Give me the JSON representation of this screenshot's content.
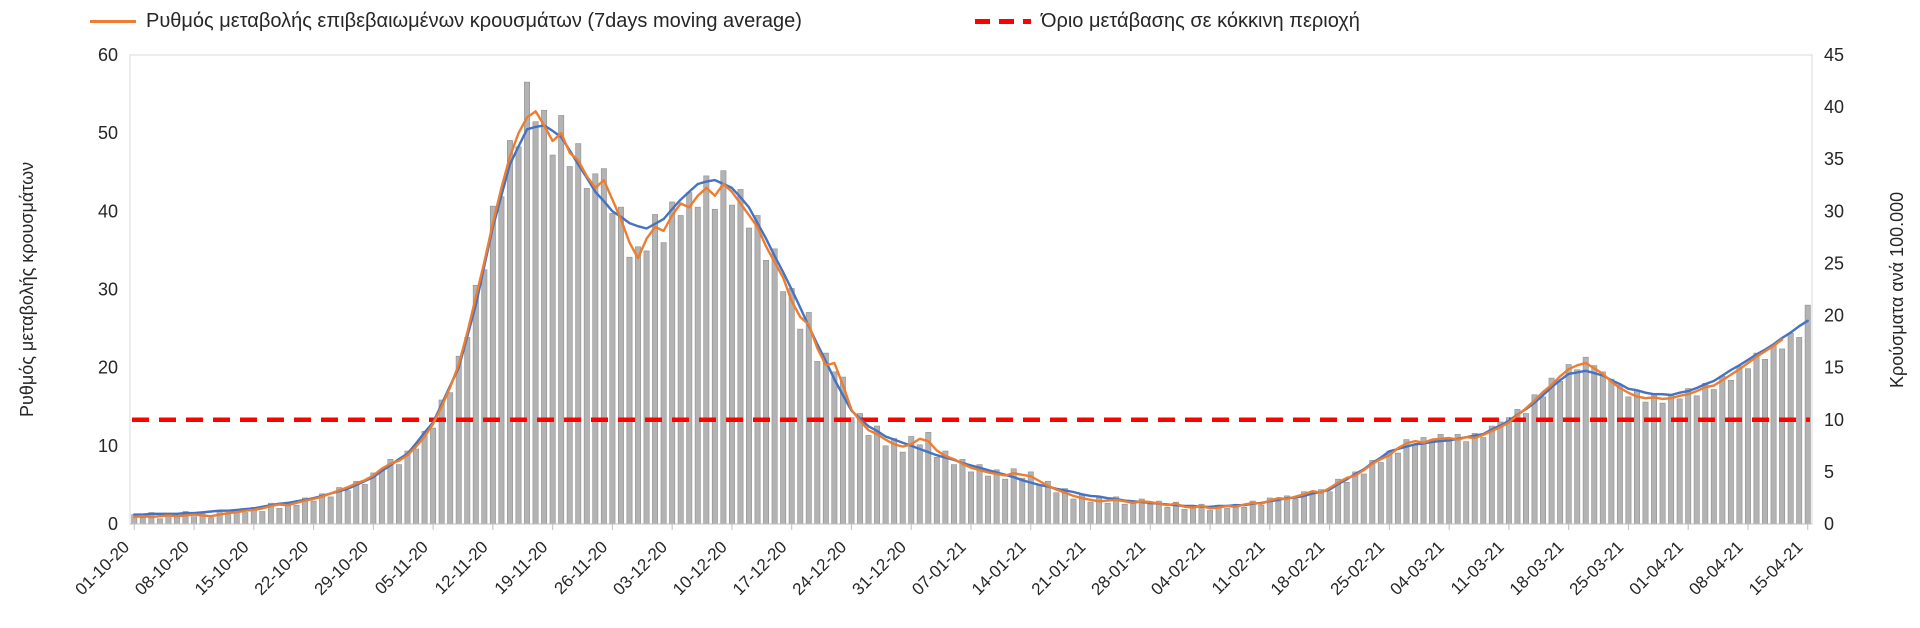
{
  "legend": {
    "items": [
      {
        "label": "Ρυθμός μεταβολής επιβεβαιωμένων κρουσμάτων (7days moving average)",
        "color": "#ED7D31",
        "style": "solid"
      },
      {
        "label": "Όριο μετάβασης σε κόκκινη περιοχή",
        "color": "#FF0000",
        "style": "dashed"
      }
    ]
  },
  "chart_data": {
    "type": "bar+line combo, dual y-axis, daily data 01-10-20 to 15-04-21",
    "grid": false,
    "legend_position": "top",
    "x": {
      "start_date": "01-10-20",
      "end_date": "15-04-21",
      "n_days": 197,
      "tick_every_days": 7,
      "tick_labels": [
        "01-10-20",
        "08-10-20",
        "15-10-20",
        "22-10-20",
        "29-10-20",
        "05-11-20",
        "12-11-20",
        "19-11-20",
        "26-11-20",
        "03-12-20",
        "10-12-20",
        "17-12-20",
        "24-12-20",
        "31-12-20",
        "07-01-21",
        "14-01-21",
        "21-01-21",
        "28-01-21",
        "04-02-21",
        "11-02-21",
        "18-02-21",
        "25-02-21",
        "04-03-21",
        "11-03-21",
        "18-03-21",
        "25-03-21",
        "01-04-21",
        "08-04-21",
        "15-04-21"
      ]
    },
    "axes": {
      "left": {
        "title": "Ρυθμός μεταβολής κρουσμάτων",
        "min": 0,
        "max": 60,
        "ticks": [
          0,
          10,
          20,
          30,
          40,
          50,
          60
        ]
      },
      "right": {
        "title": "Κρούσματα ανά 100.000",
        "min": 0,
        "max": 45,
        "ticks": [
          0,
          5,
          10,
          15,
          20,
          25,
          30,
          35,
          40,
          45
        ]
      }
    },
    "series": [
      {
        "name": "daily-cases-per-100k-bars",
        "type": "bar",
        "axis": "right",
        "color": "#b3b3b3",
        "values": [
          0.9,
          0.6,
          1.1,
          0.5,
          1.0,
          0.8,
          1.2,
          0.7,
          1.0,
          0.6,
          1.2,
          0.9,
          1.4,
          1.1,
          1.6,
          1.2,
          2.0,
          1.5,
          2.1,
          1.8,
          2.5,
          2.2,
          2.9,
          2.6,
          3.5,
          3.2,
          4.1,
          3.8,
          4.9,
          5.1,
          6.2,
          5.7,
          7.0,
          7.2,
          8.9,
          9.2,
          11.9,
          12.6,
          16.1,
          17.9,
          22.9,
          24.4,
          30.5,
          31.4,
          36.8,
          36.2,
          42.4,
          38.6,
          39.7,
          35.4,
          39.2,
          34.3,
          36.5,
          32.2,
          33.6,
          34.1,
          29.8,
          30.4,
          25.6,
          26.6,
          26.2,
          29.7,
          27.0,
          30.9,
          29.6,
          31.8,
          30.4,
          33.4,
          30.2,
          33.9,
          30.6,
          32.1,
          28.4,
          29.6,
          25.3,
          26.4,
          22.3,
          22.6,
          18.7,
          20.3,
          15.6,
          16.4,
          14.6,
          14.1,
          10.2,
          10.6,
          8.5,
          9.4,
          7.5,
          8.2,
          6.9,
          8.4,
          7.6,
          8.8,
          6.4,
          7.0,
          5.7,
          6.2,
          5.0,
          5.7,
          4.6,
          5.2,
          4.3,
          5.3,
          4.4,
          5.0,
          3.7,
          4.1,
          3.0,
          3.4,
          2.4,
          2.8,
          2.1,
          2.5,
          2.0,
          2.6,
          1.9,
          2.2,
          2.4,
          1.9,
          2.2,
          1.6,
          2.1,
          1.4,
          1.8,
          1.9,
          1.3,
          1.8,
          1.5,
          1.9,
          1.6,
          2.2,
          1.8,
          2.5,
          2.2,
          2.7,
          2.4,
          3.1,
          2.9,
          3.3,
          3.1,
          4.3,
          4.0,
          5.0,
          4.8,
          6.1,
          5.9,
          7.0,
          6.8,
          8.1,
          7.6,
          8.3,
          7.8,
          8.6,
          8.0,
          8.6,
          7.9,
          8.7,
          8.3,
          9.4,
          9.8,
          10.2,
          11.0,
          10.6,
          12.4,
          12.2,
          14.0,
          13.7,
          15.3,
          14.8,
          16.0,
          15.2,
          14.6,
          13.9,
          13.3,
          12.2,
          12.8,
          11.7,
          12.5,
          11.6,
          12.4,
          12.0,
          13.0,
          12.3,
          13.5,
          12.9,
          14.2,
          13.8,
          15.1,
          14.9,
          16.4,
          15.8,
          17.2,
          16.8,
          18.3,
          17.9,
          21.0
        ]
      },
      {
        "name": "rate-of-change-7day-moving-average",
        "type": "line",
        "axis": "left",
        "color": "#ED7D31",
        "values": [
          0.9,
          1.0,
          0.9,
          1.0,
          1.1,
          1.0,
          1.1,
          1.2,
          1.1,
          1.0,
          1.2,
          1.4,
          1.5,
          1.7,
          1.8,
          2.0,
          2.3,
          2.5,
          2.4,
          2.7,
          3.0,
          3.2,
          3.5,
          3.9,
          4.3,
          4.7,
          5.2,
          5.6,
          6.2,
          7.1,
          7.7,
          8.1,
          8.8,
          9.9,
          11.2,
          12.8,
          15.0,
          17.5,
          20.4,
          24.5,
          29.0,
          33.5,
          38.5,
          43.0,
          47.0,
          50.0,
          52.0,
          52.8,
          51.0,
          49.0,
          50.0,
          47.5,
          46.5,
          44.5,
          43.0,
          44.0,
          41.5,
          39.0,
          36.0,
          34.0,
          36.5,
          38.0,
          37.5,
          39.5,
          41.0,
          40.5,
          42.0,
          43.0,
          42.0,
          43.5,
          42.5,
          41.0,
          39.5,
          38.0,
          35.5,
          33.5,
          31.5,
          28.5,
          26.5,
          25.5,
          22.5,
          20.3,
          20.6,
          17.8,
          14.6,
          13.2,
          12.0,
          11.5,
          10.8,
          10.2,
          9.9,
          10.2,
          10.9,
          10.6,
          9.4,
          8.7,
          8.3,
          7.7,
          7.2,
          6.9,
          6.6,
          6.4,
          6.2,
          6.5,
          6.3,
          6.1,
          5.5,
          4.9,
          4.4,
          4.0,
          3.6,
          3.3,
          3.1,
          2.9,
          3.0,
          3.1,
          2.9,
          2.7,
          2.9,
          2.8,
          2.6,
          2.4,
          2.6,
          2.2,
          2.1,
          2.3,
          2.0,
          2.1,
          2.3,
          2.2,
          2.5,
          2.7,
          2.6,
          3.0,
          3.3,
          3.2,
          3.5,
          3.8,
          4.2,
          4.0,
          4.6,
          5.3,
          5.9,
          6.2,
          6.9,
          7.7,
          8.3,
          8.8,
          9.7,
          10.3,
          10.6,
          10.4,
          10.8,
          10.9,
          11.0,
          10.8,
          11.1,
          11.0,
          11.4,
          11.9,
          12.4,
          13.0,
          13.9,
          14.8,
          15.8,
          16.9,
          17.8,
          18.9,
          19.8,
          20.3,
          20.6,
          19.9,
          19.2,
          18.2,
          17.4,
          16.8,
          16.3,
          16.1,
          16.2,
          16.0,
          16.1,
          16.4,
          16.6,
          17.0,
          17.5,
          17.7,
          18.4,
          19.1,
          19.8,
          20.6,
          21.4,
          22.1,
          22.8,
          23.6,
          null,
          null,
          null
        ]
      },
      {
        "name": "smoothed-trend",
        "type": "line",
        "axis": "left",
        "color": "#4472C4",
        "values": [
          1.2,
          1.2,
          1.3,
          1.3,
          1.3,
          1.3,
          1.4,
          1.4,
          1.5,
          1.6,
          1.7,
          1.7,
          1.8,
          1.9,
          2.0,
          2.2,
          2.4,
          2.6,
          2.7,
          2.9,
          3.1,
          3.3,
          3.6,
          3.9,
          4.2,
          4.5,
          5.0,
          5.5,
          6.0,
          6.8,
          7.5,
          8.3,
          9.0,
          10.3,
          11.7,
          13.0,
          15.3,
          17.7,
          20.0,
          24.0,
          28.0,
          33.0,
          38.0,
          42.0,
          46.0,
          48.3,
          50.5,
          50.8,
          51.0,
          50.3,
          49.5,
          47.8,
          46.0,
          44.3,
          42.5,
          41.3,
          40.0,
          39.3,
          38.5,
          38.1,
          37.8,
          38.4,
          39.0,
          40.3,
          41.5,
          42.5,
          43.5,
          43.8,
          44.0,
          43.5,
          43.0,
          41.8,
          40.5,
          38.5,
          36.5,
          34.3,
          32.2,
          30.0,
          27.7,
          25.3,
          23.0,
          20.8,
          18.5,
          16.5,
          14.5,
          13.5,
          12.5,
          11.9,
          11.2,
          10.8,
          10.4,
          10.0,
          9.6,
          9.2,
          8.8,
          8.5,
          8.2,
          7.8,
          7.5,
          7.2,
          6.9,
          6.6,
          6.3,
          6.0,
          5.6,
          5.3,
          5.0,
          4.8,
          4.5,
          4.3,
          4.1,
          3.8,
          3.6,
          3.5,
          3.3,
          3.2,
          3.0,
          2.9,
          2.8,
          2.7,
          2.6,
          2.5,
          2.4,
          2.3,
          2.3,
          2.2,
          2.2,
          2.3,
          2.3,
          2.4,
          2.4,
          2.6,
          2.7,
          2.9,
          3.1,
          3.3,
          3.4,
          3.6,
          3.9,
          4.1,
          4.4,
          5.1,
          5.7,
          6.4,
          7.0,
          7.8,
          8.5,
          9.3,
          9.6,
          9.9,
          10.2,
          10.3,
          10.5,
          10.6,
          10.7,
          10.9,
          11.1,
          11.3,
          11.5,
          12.1,
          12.6,
          13.2,
          14.0,
          14.7,
          15.5,
          16.5,
          17.5,
          18.4,
          19.2,
          19.4,
          19.6,
          19.3,
          19.0,
          18.4,
          17.9,
          17.3,
          17.1,
          16.8,
          16.6,
          16.6,
          16.5,
          16.8,
          17.0,
          17.4,
          17.9,
          18.3,
          19.0,
          19.7,
          20.3,
          21.0,
          21.7,
          22.3,
          23.0,
          23.8,
          24.5,
          25.3,
          26.0
        ]
      },
      {
        "name": "red-zone-threshold",
        "type": "hline",
        "axis": "right",
        "value": 10,
        "color": "#FF0000",
        "dash": true
      }
    ]
  }
}
